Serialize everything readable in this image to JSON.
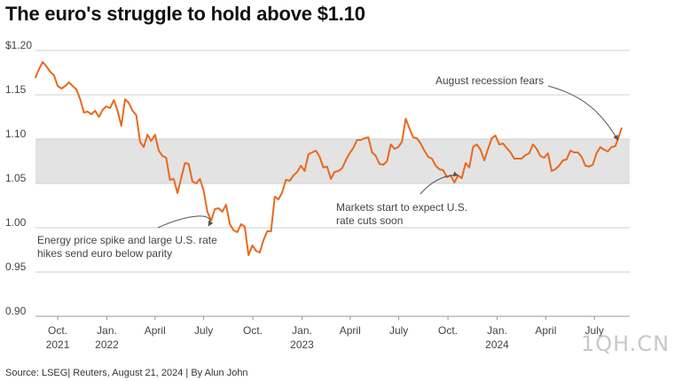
{
  "title": "The euro's struggle to hold above $1.10",
  "source": "Source: LSEG| Reuters, August 21, 2024 | By Alun John",
  "watermark": "1QH.CN",
  "colors": {
    "line": "#e8691f",
    "band": "#e3e3e3",
    "grid": "#cfcfcf",
    "annotation": "#555555"
  },
  "chart_data": {
    "type": "line",
    "title": "The euro's struggle to hold above $1.10",
    "y_tick_labels": [
      "$1.20",
      "1.15",
      "1.10",
      "1.05",
      "1.00",
      "0.95",
      "0.90"
    ],
    "y_ticks": [
      1.2,
      1.15,
      1.1,
      1.05,
      1.0,
      0.95,
      0.9
    ],
    "ylim": [
      0.9,
      1.2
    ],
    "x_ticks": [
      {
        "date": "2021-10-01",
        "line1": "Oct.",
        "line2": "2021"
      },
      {
        "date": "2022-01-01",
        "line1": "Jan.",
        "line2": "2022"
      },
      {
        "date": "2022-04-01",
        "line1": "April",
        "line2": ""
      },
      {
        "date": "2022-07-01",
        "line1": "July",
        "line2": ""
      },
      {
        "date": "2022-10-01",
        "line1": "Oct.",
        "line2": ""
      },
      {
        "date": "2023-01-01",
        "line1": "Jan.",
        "line2": "2023"
      },
      {
        "date": "2023-04-01",
        "line1": "April",
        "line2": ""
      },
      {
        "date": "2023-07-01",
        "line1": "July",
        "line2": ""
      },
      {
        "date": "2023-10-01",
        "line1": "Oct.",
        "line2": ""
      },
      {
        "date": "2024-01-01",
        "line1": "Jan.",
        "line2": "2024"
      },
      {
        "date": "2024-04-01",
        "line1": "April",
        "line2": ""
      },
      {
        "date": "2024-07-01",
        "line1": "July",
        "line2": ""
      }
    ],
    "xlim": [
      "2021-06-25",
      "2024-09-05"
    ],
    "band": [
      1.05,
      1.1
    ],
    "grid": true,
    "series": [
      {
        "points": [
          [
            "2021-08-20",
            1.169
          ],
          [
            "2021-08-27",
            1.179
          ],
          [
            "2021-09-03",
            1.187
          ],
          [
            "2021-09-10",
            1.182
          ],
          [
            "2021-09-17",
            1.176
          ],
          [
            "2021-09-24",
            1.172
          ],
          [
            "2021-10-01",
            1.16
          ],
          [
            "2021-10-08",
            1.157
          ],
          [
            "2021-10-15",
            1.16
          ],
          [
            "2021-10-22",
            1.164
          ],
          [
            "2021-10-29",
            1.16
          ],
          [
            "2021-11-05",
            1.156
          ],
          [
            "2021-11-12",
            1.145
          ],
          [
            "2021-11-19",
            1.13
          ],
          [
            "2021-11-26",
            1.131
          ],
          [
            "2021-12-03",
            1.128
          ],
          [
            "2021-12-10",
            1.132
          ],
          [
            "2021-12-17",
            1.125
          ],
          [
            "2021-12-24",
            1.133
          ],
          [
            "2021-12-31",
            1.137
          ],
          [
            "2022-01-07",
            1.135
          ],
          [
            "2022-01-14",
            1.144
          ],
          [
            "2022-01-21",
            1.132
          ],
          [
            "2022-01-28",
            1.115
          ],
          [
            "2022-02-04",
            1.145
          ],
          [
            "2022-02-11",
            1.141
          ],
          [
            "2022-02-18",
            1.132
          ],
          [
            "2022-02-25",
            1.127
          ],
          [
            "2022-03-04",
            1.097
          ],
          [
            "2022-03-11",
            1.091
          ],
          [
            "2022-03-18",
            1.105
          ],
          [
            "2022-03-25",
            1.098
          ],
          [
            "2022-04-01",
            1.105
          ],
          [
            "2022-04-08",
            1.087
          ],
          [
            "2022-04-15",
            1.081
          ],
          [
            "2022-04-22",
            1.079
          ],
          [
            "2022-04-29",
            1.054
          ],
          [
            "2022-05-06",
            1.055
          ],
          [
            "2022-05-13",
            1.039
          ],
          [
            "2022-05-20",
            1.056
          ],
          [
            "2022-05-27",
            1.073
          ],
          [
            "2022-06-03",
            1.072
          ],
          [
            "2022-06-10",
            1.052
          ],
          [
            "2022-06-17",
            1.05
          ],
          [
            "2022-06-24",
            1.055
          ],
          [
            "2022-07-01",
            1.042
          ],
          [
            "2022-07-08",
            1.018
          ],
          [
            "2022-07-15",
            1.008
          ],
          [
            "2022-07-22",
            1.021
          ],
          [
            "2022-07-29",
            1.022
          ],
          [
            "2022-08-05",
            1.018
          ],
          [
            "2022-08-12",
            1.026
          ],
          [
            "2022-08-19",
            1.004
          ],
          [
            "2022-08-26",
            0.997
          ],
          [
            "2022-09-02",
            0.995
          ],
          [
            "2022-09-09",
            1.004
          ],
          [
            "2022-09-16",
            1.001
          ],
          [
            "2022-09-23",
            0.969
          ],
          [
            "2022-09-30",
            0.98
          ],
          [
            "2022-10-07",
            0.974
          ],
          [
            "2022-10-14",
            0.972
          ],
          [
            "2022-10-21",
            0.986
          ],
          [
            "2022-10-28",
            0.996
          ],
          [
            "2022-11-04",
            0.996
          ],
          [
            "2022-11-11",
            1.035
          ],
          [
            "2022-11-18",
            1.032
          ],
          [
            "2022-11-25",
            1.04
          ],
          [
            "2022-12-02",
            1.054
          ],
          [
            "2022-12-09",
            1.053
          ],
          [
            "2022-12-16",
            1.059
          ],
          [
            "2022-12-23",
            1.063
          ],
          [
            "2022-12-30",
            1.07
          ],
          [
            "2023-01-06",
            1.064
          ],
          [
            "2023-01-13",
            1.083
          ],
          [
            "2023-01-20",
            1.085
          ],
          [
            "2023-01-27",
            1.087
          ],
          [
            "2023-02-03",
            1.08
          ],
          [
            "2023-02-10",
            1.068
          ],
          [
            "2023-02-17",
            1.069
          ],
          [
            "2023-02-24",
            1.055
          ],
          [
            "2023-03-03",
            1.063
          ],
          [
            "2023-03-10",
            1.064
          ],
          [
            "2023-03-17",
            1.067
          ],
          [
            "2023-03-24",
            1.076
          ],
          [
            "2023-03-31",
            1.084
          ],
          [
            "2023-04-07",
            1.09
          ],
          [
            "2023-04-14",
            1.099
          ],
          [
            "2023-04-21",
            1.099
          ],
          [
            "2023-04-28",
            1.101
          ],
          [
            "2023-05-05",
            1.102
          ],
          [
            "2023-05-12",
            1.085
          ],
          [
            "2023-05-19",
            1.081
          ],
          [
            "2023-05-26",
            1.072
          ],
          [
            "2023-06-02",
            1.071
          ],
          [
            "2023-06-09",
            1.075
          ],
          [
            "2023-06-16",
            1.094
          ],
          [
            "2023-06-23",
            1.089
          ],
          [
            "2023-06-30",
            1.091
          ],
          [
            "2023-07-07",
            1.097
          ],
          [
            "2023-07-14",
            1.123
          ],
          [
            "2023-07-21",
            1.112
          ],
          [
            "2023-07-28",
            1.102
          ],
          [
            "2023-08-04",
            1.101
          ],
          [
            "2023-08-11",
            1.095
          ],
          [
            "2023-08-18",
            1.087
          ],
          [
            "2023-08-25",
            1.08
          ],
          [
            "2023-09-01",
            1.078
          ],
          [
            "2023-09-08",
            1.07
          ],
          [
            "2023-09-15",
            1.066
          ],
          [
            "2023-09-22",
            1.065
          ],
          [
            "2023-09-29",
            1.057
          ],
          [
            "2023-10-06",
            1.059
          ],
          [
            "2023-10-13",
            1.051
          ],
          [
            "2023-10-20",
            1.059
          ],
          [
            "2023-10-27",
            1.056
          ],
          [
            "2023-11-03",
            1.073
          ],
          [
            "2023-11-10",
            1.068
          ],
          [
            "2023-11-17",
            1.091
          ],
          [
            "2023-11-24",
            1.094
          ],
          [
            "2023-12-01",
            1.088
          ],
          [
            "2023-12-08",
            1.076
          ],
          [
            "2023-12-15",
            1.089
          ],
          [
            "2023-12-22",
            1.101
          ],
          [
            "2023-12-29",
            1.104
          ],
          [
            "2024-01-05",
            1.094
          ],
          [
            "2024-01-12",
            1.095
          ],
          [
            "2024-01-19",
            1.09
          ],
          [
            "2024-01-26",
            1.085
          ],
          [
            "2024-02-02",
            1.078
          ],
          [
            "2024-02-09",
            1.078
          ],
          [
            "2024-02-16",
            1.078
          ],
          [
            "2024-02-23",
            1.082
          ],
          [
            "2024-03-01",
            1.084
          ],
          [
            "2024-03-08",
            1.094
          ],
          [
            "2024-03-15",
            1.089
          ],
          [
            "2024-03-22",
            1.081
          ],
          [
            "2024-03-29",
            1.079
          ],
          [
            "2024-04-05",
            1.084
          ],
          [
            "2024-04-12",
            1.064
          ],
          [
            "2024-04-19",
            1.066
          ],
          [
            "2024-04-26",
            1.07
          ],
          [
            "2024-05-03",
            1.076
          ],
          [
            "2024-05-10",
            1.077
          ],
          [
            "2024-05-17",
            1.087
          ],
          [
            "2024-05-24",
            1.085
          ],
          [
            "2024-05-31",
            1.085
          ],
          [
            "2024-06-07",
            1.08
          ],
          [
            "2024-06-14",
            1.07
          ],
          [
            "2024-06-21",
            1.069
          ],
          [
            "2024-06-28",
            1.071
          ],
          [
            "2024-07-05",
            1.084
          ],
          [
            "2024-07-12",
            1.091
          ],
          [
            "2024-07-19",
            1.088
          ],
          [
            "2024-07-26",
            1.086
          ],
          [
            "2024-08-02",
            1.091
          ],
          [
            "2024-08-09",
            1.092
          ],
          [
            "2024-08-16",
            1.103
          ],
          [
            "2024-08-21",
            1.113
          ]
        ]
      }
    ],
    "annotations": [
      {
        "lines": [
          "Energy price spike and large U.S. rate",
          "hikes send euro below parity"
        ],
        "target_date": "2022-07-10",
        "target_value": 1.002
      },
      {
        "lines": [
          "Markets start to expect U.S.",
          "rate cuts soon"
        ],
        "target_date": "2023-10-20",
        "target_value": 1.059
      },
      {
        "lines": [
          "August recession fears"
        ],
        "target_date": "2024-08-14",
        "target_value": 1.099
      }
    ]
  }
}
